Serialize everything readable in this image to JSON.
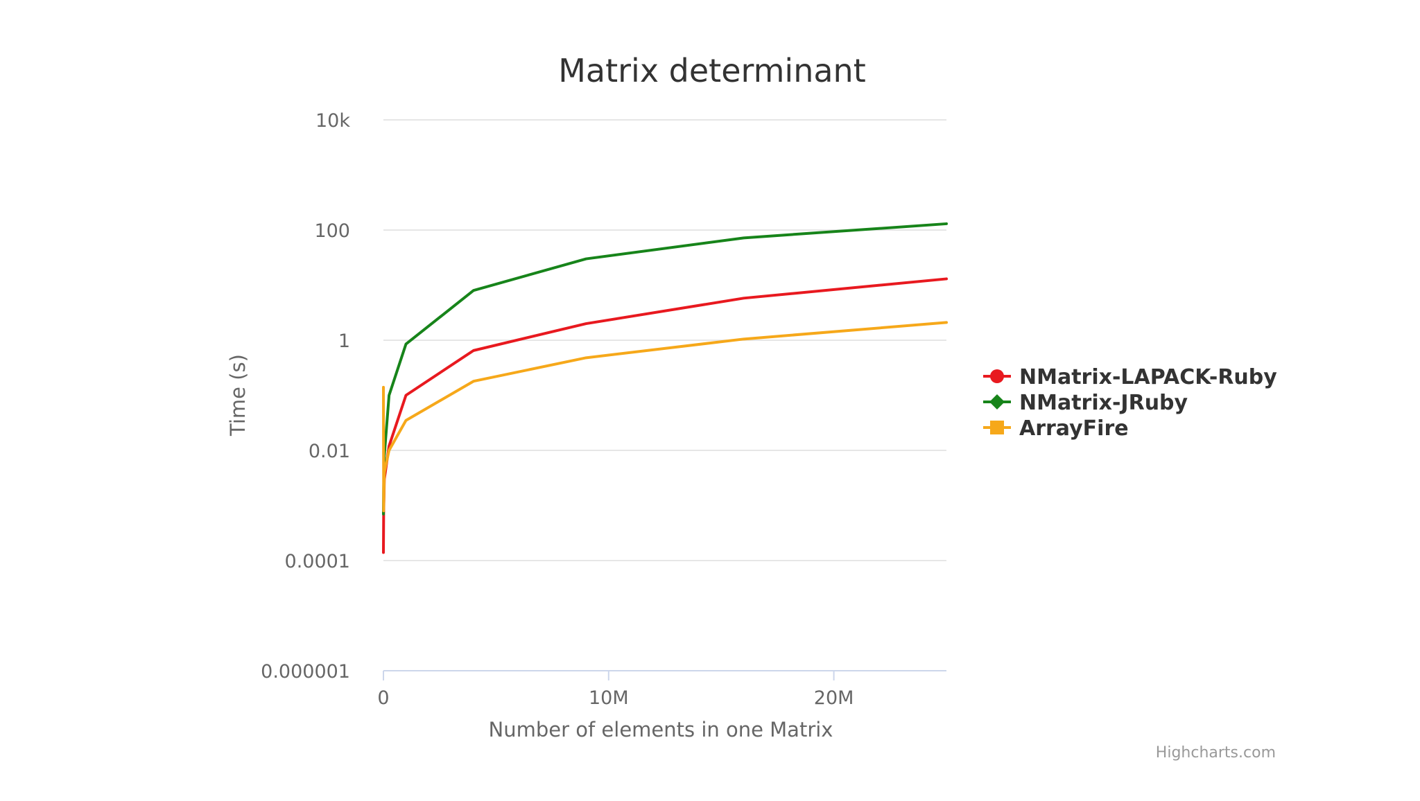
{
  "chart_data": {
    "type": "line",
    "title": "Matrix determinant",
    "xlabel": "Number of elements in one Matrix",
    "ylabel": "Time (s)",
    "y_scale": "log",
    "xlim": [
      0,
      25000000
    ],
    "ylim": [
      1e-06,
      10000
    ],
    "x_ticks": [
      {
        "value": 0,
        "label": "0"
      },
      {
        "value": 10000000,
        "label": "10M"
      },
      {
        "value": 20000000,
        "label": "20M"
      }
    ],
    "y_ticks": [
      {
        "value": 10000,
        "label": "10k"
      },
      {
        "value": 100,
        "label": "100"
      },
      {
        "value": 1,
        "label": "1"
      },
      {
        "value": 0.01,
        "label": "0.01"
      },
      {
        "value": 0.0001,
        "label": "0.0001"
      },
      {
        "value": 1e-06,
        "label": "0.000001"
      }
    ],
    "grid": true,
    "legend_position": "right",
    "series": [
      {
        "name": "NMatrix-LAPACK-Ruby",
        "color": "#e8191f",
        "marker": "circle",
        "points": [
          {
            "x": 100,
            "y": 0.00014
          },
          {
            "x": 10000,
            "y": 0.0007
          },
          {
            "x": 40000,
            "y": 0.003
          },
          {
            "x": 250000,
            "y": 0.012
          },
          {
            "x": 1000000,
            "y": 0.1
          },
          {
            "x": 4000000,
            "y": 0.65
          },
          {
            "x": 9000000,
            "y": 2.0
          },
          {
            "x": 16000000,
            "y": 5.8
          },
          {
            "x": 25000000,
            "y": 13.0
          }
        ]
      },
      {
        "name": "NMatrix-JRuby",
        "color": "#17841a",
        "marker": "diamond",
        "points": [
          {
            "x": 100,
            "y": 0.0007
          },
          {
            "x": 10000,
            "y": 0.002
          },
          {
            "x": 40000,
            "y": 0.008
          },
          {
            "x": 250000,
            "y": 0.1
          },
          {
            "x": 1000000,
            "y": 0.85
          },
          {
            "x": 4000000,
            "y": 8.0
          },
          {
            "x": 9000000,
            "y": 30.0
          },
          {
            "x": 16000000,
            "y": 72.0
          },
          {
            "x": 25000000,
            "y": 130.0
          }
        ]
      },
      {
        "name": "ArrayFire",
        "color": "#f6a81a",
        "marker": "square",
        "points": [
          {
            "x": 100,
            "y": 0.14
          },
          {
            "x": 10000,
            "y": 0.0008
          },
          {
            "x": 40000,
            "y": 0.004
          },
          {
            "x": 250000,
            "y": 0.01
          },
          {
            "x": 1000000,
            "y": 0.035
          },
          {
            "x": 4000000,
            "y": 0.18
          },
          {
            "x": 9000000,
            "y": 0.48
          },
          {
            "x": 16000000,
            "y": 1.05
          },
          {
            "x": 25000000,
            "y": 2.1
          }
        ]
      }
    ]
  },
  "credits": "Highcharts.com"
}
